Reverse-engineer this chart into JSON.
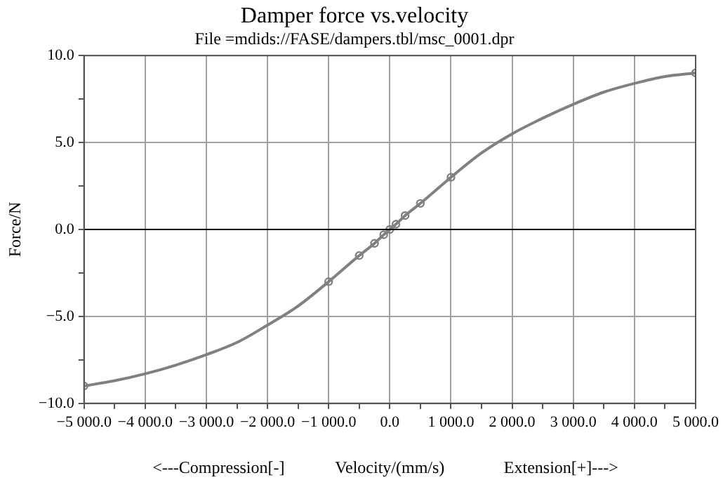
{
  "chart_data": {
    "type": "line",
    "title": "Damper force vs.velocity",
    "subtitle": "File =mdids://FASE/dampers.tbl/msc_0001.dpr",
    "xlabel": "Velocity/(mm/s)",
    "ylabel": "Force/N",
    "annotations": [
      "<---Compression[-]",
      "Extension[+]--->"
    ],
    "series": [
      {
        "type": "line",
        "color": "#808080",
        "marker": "none",
        "x": [
          -5000,
          -4500,
          -4000,
          -3500,
          -3000,
          -2500,
          -2000,
          -1500,
          -1000,
          -500,
          -250,
          -100,
          0,
          100,
          250,
          500,
          1000,
          1500,
          2000,
          2500,
          3000,
          3500,
          4000,
          4500,
          5000
        ],
        "values": [
          -9.0,
          -8.7,
          -8.3,
          -7.8,
          -7.2,
          -6.5,
          -5.5,
          -4.4,
          -3.0,
          -1.5,
          -0.8,
          -0.3,
          0,
          0.3,
          0.8,
          1.5,
          3.0,
          4.4,
          5.5,
          6.4,
          7.2,
          7.9,
          8.4,
          8.8,
          9.0
        ]
      },
      {
        "type": "scatter",
        "color": "#808080",
        "marker": "circle",
        "x": [
          -5000,
          -1000,
          -500,
          -250,
          -100,
          0,
          100,
          250,
          500,
          1000,
          5000
        ],
        "values": [
          -9.0,
          -3.0,
          -1.5,
          -0.8,
          -0.3,
          0,
          0.3,
          0.8,
          1.5,
          3.0,
          9.0
        ]
      }
    ],
    "xlim": [
      -5000,
      5000
    ],
    "xticks": [
      {
        "value": -5000,
        "label": "−5 000.0"
      },
      {
        "value": -4500,
        "label": null
      },
      {
        "value": -4000,
        "label": "−4 000.0"
      },
      {
        "value": -3500,
        "label": null
      },
      {
        "value": -3000,
        "label": "−3 000.0"
      },
      {
        "value": -2500,
        "label": null
      },
      {
        "value": -2000,
        "label": "−2 000.0"
      },
      {
        "value": -1500,
        "label": null
      },
      {
        "value": -1000,
        "label": "−1 000.0"
      },
      {
        "value": -500,
        "label": null
      },
      {
        "value": 0,
        "label": "0.0"
      },
      {
        "value": 500,
        "label": null
      },
      {
        "value": 1000,
        "label": "1 000.0"
      },
      {
        "value": 1500,
        "label": null
      },
      {
        "value": 2000,
        "label": "2 000.0"
      },
      {
        "value": 2500,
        "label": null
      },
      {
        "value": 3000,
        "label": "3 000.0"
      },
      {
        "value": 3500,
        "label": null
      },
      {
        "value": 4000,
        "label": "4 000.0"
      },
      {
        "value": 4500,
        "label": null
      },
      {
        "value": 5000,
        "label": "5 000.0"
      }
    ],
    "ylim": [
      -10,
      10
    ],
    "yticks": [
      {
        "value": -10,
        "label": "−10.0"
      },
      {
        "value": -7.5,
        "label": null
      },
      {
        "value": -5,
        "label": "−5.0"
      },
      {
        "value": -2.5,
        "label": null
      },
      {
        "value": 0,
        "label": "0.0"
      },
      {
        "value": 2.5,
        "label": null
      },
      {
        "value": 5,
        "label": "5.0"
      },
      {
        "value": 7.5,
        "label": null
      },
      {
        "value": 10,
        "label": "10.0"
      }
    ],
    "ref_lines": [
      {
        "axis": "y",
        "value": 0,
        "color": "#000000"
      }
    ],
    "grid": true,
    "legend": false
  }
}
